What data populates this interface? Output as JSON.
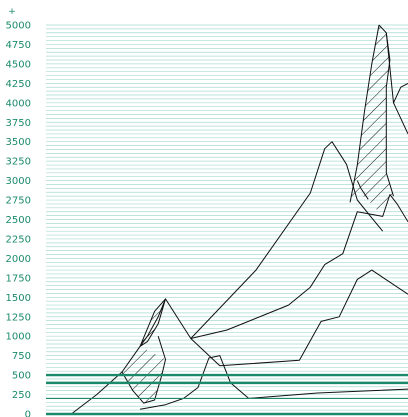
{
  "chart_data": {
    "type": "line",
    "title": "",
    "xlabel": "",
    "ylabel": "",
    "y_axis_marker": "+",
    "ylim": [
      0,
      5000
    ],
    "y_ticks": [
      0,
      250,
      500,
      750,
      1000,
      1250,
      1500,
      1750,
      2000,
      2250,
      2500,
      2750,
      3000,
      3250,
      3500,
      3750,
      4000,
      4250,
      4500,
      4750,
      5000
    ],
    "y_tick_labels": [
      "0",
      "250",
      "500",
      "750",
      "1000",
      "1250",
      "1500",
      "1750",
      "2000",
      "2250",
      "2500",
      "2750",
      "3000",
      "3250",
      "3500",
      "3750",
      "4000",
      "4250",
      "4500",
      "4750",
      "5000"
    ],
    "grid": true,
    "minor_gridline_step": 50,
    "emphasized_levels": [
      200,
      400,
      500
    ],
    "line_color": "#111111",
    "grid_color": "#a8dccf",
    "axis_color": "#1b8a6b",
    "x_range": [
      0,
      100
    ],
    "series": [
      {
        "points": [
          [
            7,
            0
          ],
          [
            14,
            250
          ],
          [
            21,
            540
          ],
          [
            26,
            870
          ],
          [
            30,
            1320
          ],
          [
            33,
            1480
          ],
          [
            40,
            970
          ],
          [
            48,
            620
          ],
          [
            70,
            690
          ],
          [
            76,
            1190
          ],
          [
            81,
            1250
          ],
          [
            86,
            1730
          ],
          [
            90,
            1850
          ],
          [
            100,
            1540
          ]
        ]
      },
      {
        "points": [
          [
            40,
            970
          ],
          [
            58,
            1850
          ],
          [
            73,
            2840
          ],
          [
            77,
            3410
          ],
          [
            79,
            3500
          ],
          [
            83,
            3210
          ],
          [
            86,
            2750
          ],
          [
            90,
            2520
          ],
          [
            93,
            2350
          ]
        ]
      },
      {
        "points": [
          [
            40,
            970
          ],
          [
            50,
            1080
          ],
          [
            67,
            1400
          ],
          [
            73,
            1630
          ],
          [
            77,
            1920
          ],
          [
            82,
            2060
          ],
          [
            86,
            2600
          ],
          [
            93,
            2540
          ],
          [
            95,
            2820
          ],
          [
            97,
            2700
          ],
          [
            100,
            2470
          ]
        ]
      },
      {
        "points": [
          [
            92,
            5000
          ],
          [
            94,
            4900
          ],
          [
            96,
            4000
          ],
          [
            98,
            4200
          ],
          [
            100,
            4250
          ]
        ]
      },
      {
        "points": [
          [
            96,
            4000
          ],
          [
            100,
            3600
          ]
        ]
      },
      {
        "points": [
          [
            92,
            5000
          ],
          [
            90,
            4500
          ],
          [
            88,
            3900
          ],
          [
            86,
            3200
          ],
          [
            84,
            2720
          ]
        ]
      },
      {
        "points": [
          [
            94,
            4900
          ],
          [
            95,
            4550
          ],
          [
            94,
            4200
          ],
          [
            94,
            3700
          ],
          [
            94,
            3100
          ],
          [
            96,
            2800
          ]
        ]
      },
      {
        "points": [
          [
            86,
            3000
          ],
          [
            87,
            2900
          ],
          [
            89,
            2760
          ]
        ]
      },
      {
        "points": [
          [
            26,
            60
          ],
          [
            33,
            120
          ],
          [
            38,
            200
          ],
          [
            42,
            340
          ],
          [
            45,
            720
          ],
          [
            48,
            750
          ],
          [
            51,
            400
          ],
          [
            56,
            200
          ],
          [
            75,
            270
          ],
          [
            100,
            320
          ]
        ]
      },
      {
        "points": [
          [
            26,
            870
          ],
          [
            28,
            1000
          ],
          [
            31,
            1250
          ],
          [
            33,
            1480
          ],
          [
            31,
            1160
          ],
          [
            28,
            930
          ],
          [
            26,
            870
          ]
        ]
      },
      {
        "points": [
          [
            21,
            540
          ],
          [
            24,
            300
          ],
          [
            27,
            140
          ],
          [
            30,
            180
          ],
          [
            32,
            500
          ],
          [
            33,
            700
          ],
          [
            31,
            1000
          ]
        ]
      }
    ],
    "hatched_regions": [
      {
        "polygon": [
          [
            26,
            870
          ],
          [
            30,
            1320
          ],
          [
            33,
            1480
          ],
          [
            31,
            1160
          ],
          [
            28,
            930
          ],
          [
            26,
            870
          ]
        ]
      },
      {
        "polygon": [
          [
            21,
            540
          ],
          [
            26,
            870
          ],
          [
            33,
            700
          ],
          [
            32,
            500
          ],
          [
            30,
            180
          ],
          [
            27,
            140
          ],
          [
            24,
            300
          ]
        ]
      },
      {
        "polygon": [
          [
            86,
            3200
          ],
          [
            88,
            3900
          ],
          [
            90,
            4500
          ],
          [
            92,
            5000
          ],
          [
            94,
            4900
          ],
          [
            95,
            4550
          ],
          [
            94,
            4200
          ],
          [
            94,
            3700
          ],
          [
            94,
            3100
          ],
          [
            96,
            2800
          ],
          [
            93,
            2540
          ],
          [
            88,
            2800
          ],
          [
            84,
            2720
          ]
        ]
      }
    ]
  }
}
